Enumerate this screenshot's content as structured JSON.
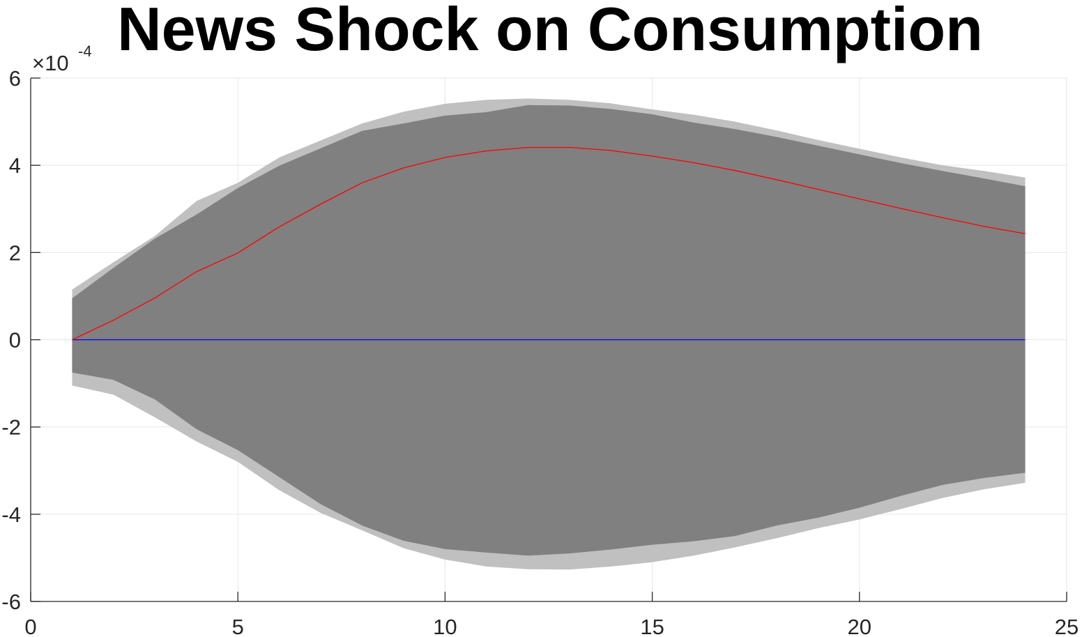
{
  "chart_data": {
    "type": "line",
    "title": "News Shock on Consumption",
    "xlabel": "",
    "ylabel": "",
    "exponent_label": {
      "base": "×10",
      "power": "-4"
    },
    "xlim": [
      0,
      25
    ],
    "ylim": [
      -6,
      6
    ],
    "xticks": [
      0,
      5,
      10,
      15,
      20,
      25
    ],
    "yticks": [
      -6,
      -4,
      -2,
      0,
      2,
      4,
      6
    ],
    "xtick_labels": [
      "0",
      "5",
      "10",
      "15",
      "20",
      "25"
    ],
    "ytick_labels": [
      "-6",
      "-4",
      "-2",
      "0",
      "2",
      "4",
      "6"
    ],
    "grid": true,
    "x": [
      1,
      2,
      3,
      4,
      5,
      6,
      7,
      8,
      9,
      10,
      11,
      12,
      13,
      14,
      15,
      16,
      17,
      18,
      19,
      20,
      21,
      22,
      23,
      24
    ],
    "bands": [
      {
        "name": "outer band",
        "color": "#c0c0c0",
        "upper": [
          1.15,
          1.78,
          2.38,
          3.18,
          3.6,
          4.18,
          4.57,
          4.96,
          5.23,
          5.41,
          5.5,
          5.53,
          5.5,
          5.42,
          5.28,
          5.16,
          5.0,
          4.8,
          4.58,
          4.38,
          4.18,
          4.0,
          3.87,
          3.72
        ],
        "lower": [
          -1.05,
          -1.26,
          -1.78,
          -2.33,
          -2.8,
          -3.45,
          -3.97,
          -4.37,
          -4.78,
          -5.04,
          -5.2,
          -5.26,
          -5.27,
          -5.2,
          -5.1,
          -4.95,
          -4.76,
          -4.55,
          -4.32,
          -4.12,
          -3.88,
          -3.63,
          -3.43,
          -3.28
        ]
      },
      {
        "name": "inner band",
        "color": "#808080",
        "upper": [
          0.95,
          1.65,
          2.32,
          2.87,
          3.48,
          3.99,
          4.39,
          4.79,
          4.96,
          5.14,
          5.22,
          5.38,
          5.37,
          5.29,
          5.17,
          4.98,
          4.83,
          4.65,
          4.45,
          4.25,
          4.05,
          3.87,
          3.7,
          3.52
        ],
        "lower": [
          -0.75,
          -0.92,
          -1.37,
          -2.05,
          -2.53,
          -3.15,
          -3.77,
          -4.26,
          -4.61,
          -4.8,
          -4.88,
          -4.95,
          -4.9,
          -4.81,
          -4.7,
          -4.62,
          -4.5,
          -4.26,
          -4.08,
          -3.85,
          -3.58,
          -3.33,
          -3.17,
          -3.05
        ]
      }
    ],
    "series": [
      {
        "name": "impulse response",
        "color": "#ff0000",
        "values": [
          0.0,
          0.45,
          0.96,
          1.56,
          1.99,
          2.59,
          3.11,
          3.6,
          3.94,
          4.18,
          4.33,
          4.41,
          4.41,
          4.34,
          4.21,
          4.06,
          3.88,
          3.67,
          3.45,
          3.23,
          3.01,
          2.8,
          2.6,
          2.43
        ]
      },
      {
        "name": "zero line",
        "color": "#0000ff",
        "values": [
          0,
          0,
          0,
          0,
          0,
          0,
          0,
          0,
          0,
          0,
          0,
          0,
          0,
          0,
          0,
          0,
          0,
          0,
          0,
          0,
          0,
          0,
          0,
          0
        ]
      }
    ]
  }
}
